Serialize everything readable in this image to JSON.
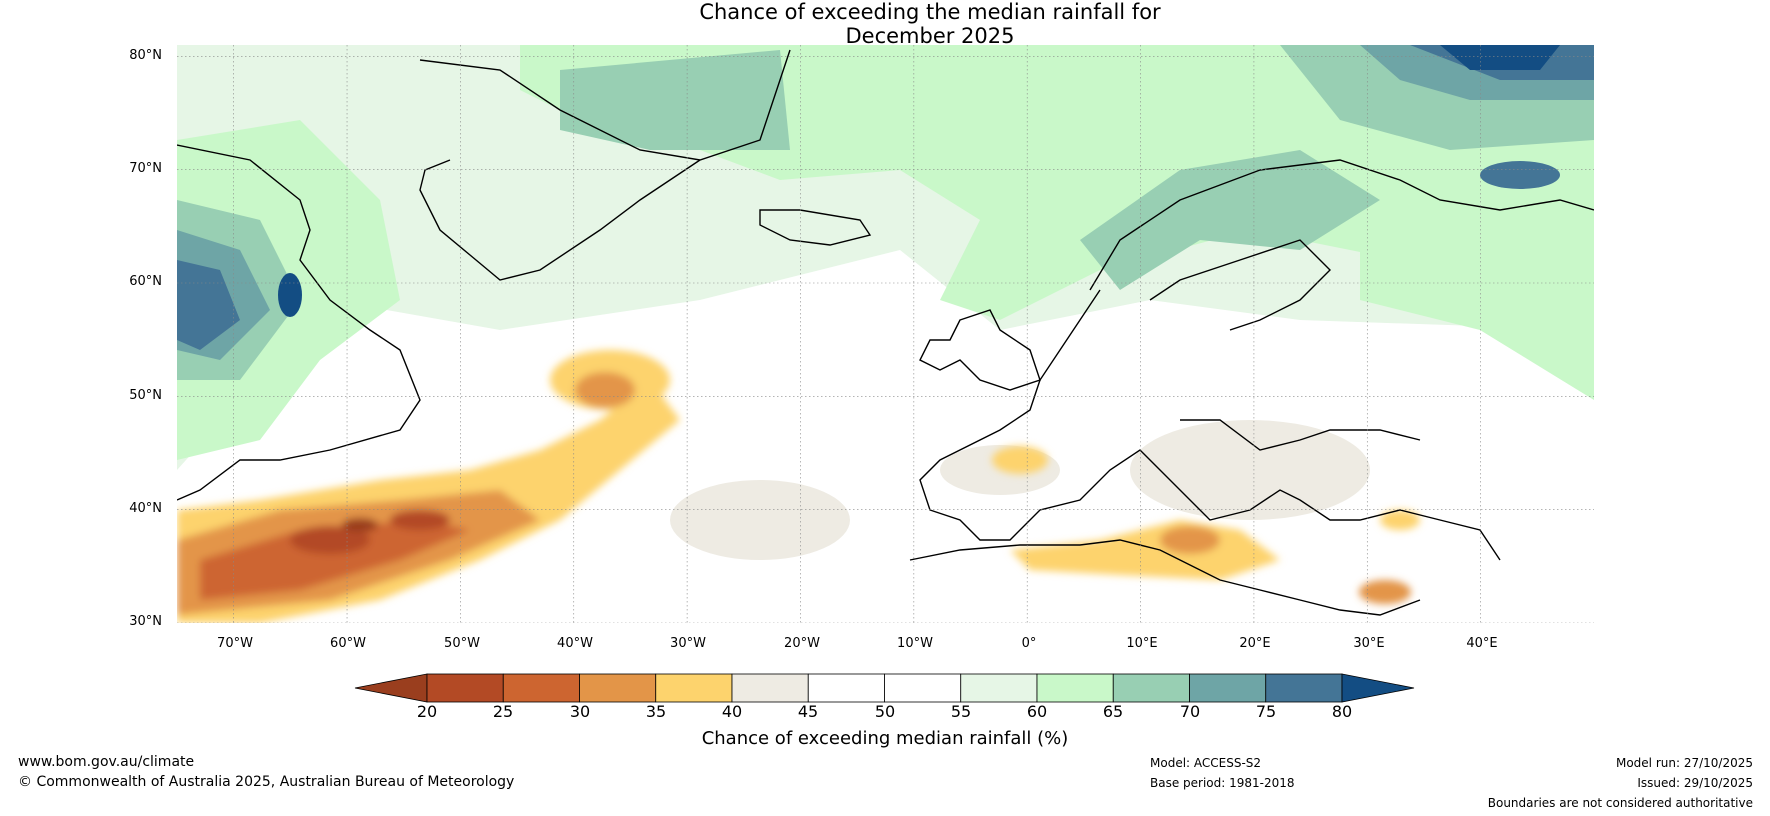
{
  "title": {
    "line1": "Chance of exceeding the median rainfall for",
    "line2": "December 2025"
  },
  "map": {
    "lat_labels": [
      "80°N",
      "70°N",
      "60°N",
      "50°N",
      "40°N",
      "30°N"
    ],
    "lon_labels": [
      "70°W",
      "60°W",
      "50°W",
      "40°W",
      "30°W",
      "20°W",
      "10°W",
      "0°",
      "10°E",
      "20°E",
      "30°E",
      "40°E"
    ],
    "lat_values": [
      80,
      70,
      60,
      50,
      40,
      30
    ],
    "lon_values": [
      -70,
      -60,
      -50,
      -40,
      -30,
      -20,
      -10,
      0,
      10,
      20,
      30,
      40
    ],
    "extent": {
      "lon_min": -75,
      "lon_max": 50,
      "lat_min": 30,
      "lat_max": 81
    }
  },
  "colorbar": {
    "ticks": [
      "20",
      "25",
      "30",
      "35",
      "40",
      "45",
      "50",
      "55",
      "60",
      "65",
      "70",
      "75",
      "80"
    ],
    "label": "Chance of exceeding median rainfall (%)",
    "colors": [
      "#9a3e1e",
      "#b34a25",
      "#cd6530",
      "#e39548",
      "#fdd36d",
      "#eeebe3",
      "#ffffff",
      "#ffffff",
      "#e6f6e6",
      "#c9f8c9",
      "#98cfb3",
      "#6ea5a6",
      "#447596",
      "#134d83"
    ]
  },
  "footer": {
    "website": "www.bom.gov.au/climate",
    "copyright": "© Commonwealth of Australia 2025, Australian Bureau of Meteorology",
    "model": "Model: ACCESS-S2",
    "base_period": "Base period: 1981-2018",
    "model_run": "Model run: 27/10/2025",
    "issued": "Issued: 29/10/2025",
    "disclaimer": "Boundaries are not considered authoritative"
  }
}
